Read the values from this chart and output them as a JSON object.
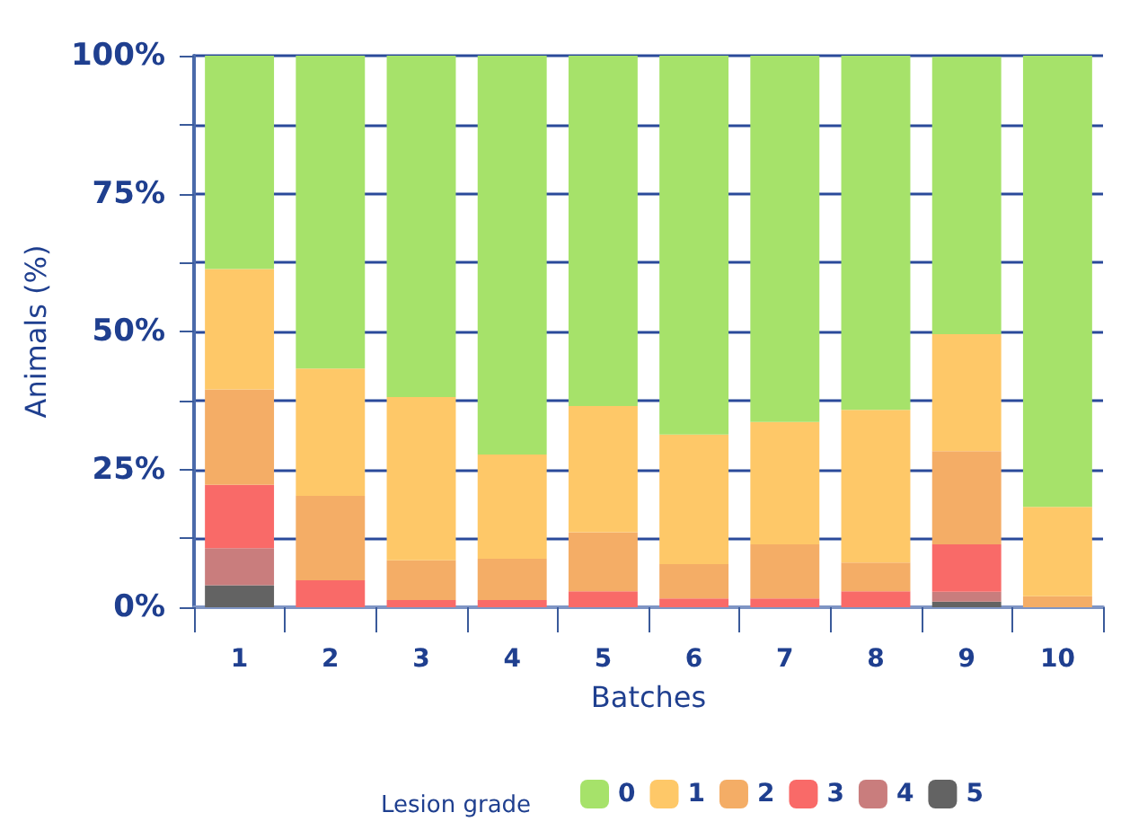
{
  "chart_data": {
    "type": "bar",
    "stacked": true,
    "xlabel": "Batches",
    "ylabel": "Animals (%)",
    "legend_title": "Lesion grade",
    "legend": "bottom",
    "grid": "y",
    "categories": [
      "1",
      "2",
      "3",
      "4",
      "5",
      "6",
      "7",
      "8",
      "9",
      "10"
    ],
    "ylim": [
      0,
      100
    ],
    "yticks": [
      {
        "value": 0,
        "label": "0%"
      },
      {
        "value": 12.5,
        "label": null
      },
      {
        "value": 25,
        "label": "25%"
      },
      {
        "value": 37.5,
        "label": null
      },
      {
        "value": 50,
        "label": "50%"
      },
      {
        "value": 62.5,
        "label": null
      },
      {
        "value": 75,
        "label": "75%"
      },
      {
        "value": 87.5,
        "label": null
      },
      {
        "value": 100,
        "label": "100%"
      }
    ],
    "series": [
      {
        "name": "5",
        "color": "#636363",
        "values": [
          4,
          0,
          0,
          0,
          0,
          0,
          0,
          0,
          1,
          0
        ]
      },
      {
        "name": "4",
        "color": "#c97d7d",
        "values": [
          6.7,
          0,
          0,
          0,
          0,
          0,
          0,
          0,
          1.8,
          0
        ]
      },
      {
        "name": "3",
        "color": "#f96a68",
        "values": [
          11.5,
          4.9,
          1.3,
          1.3,
          2.9,
          1.6,
          1.6,
          2.9,
          8.6,
          0
        ]
      },
      {
        "name": "2",
        "color": "#f4ad66",
        "values": [
          17.3,
          15.3,
          7.2,
          7.5,
          10.7,
          6.2,
          9.8,
          5.2,
          16.9,
          2
        ]
      },
      {
        "name": "1",
        "color": "#fec868",
        "values": [
          21.8,
          23.1,
          29.6,
          18.9,
          22.9,
          23.5,
          22.2,
          27.7,
          21.2,
          16.2
        ]
      },
      {
        "name": "0",
        "color": "#a6e26a",
        "values": [
          38.7,
          56.7,
          61.9,
          72.3,
          63.5,
          68.7,
          66.4,
          64.2,
          50.3,
          81.8
        ]
      }
    ]
  }
}
